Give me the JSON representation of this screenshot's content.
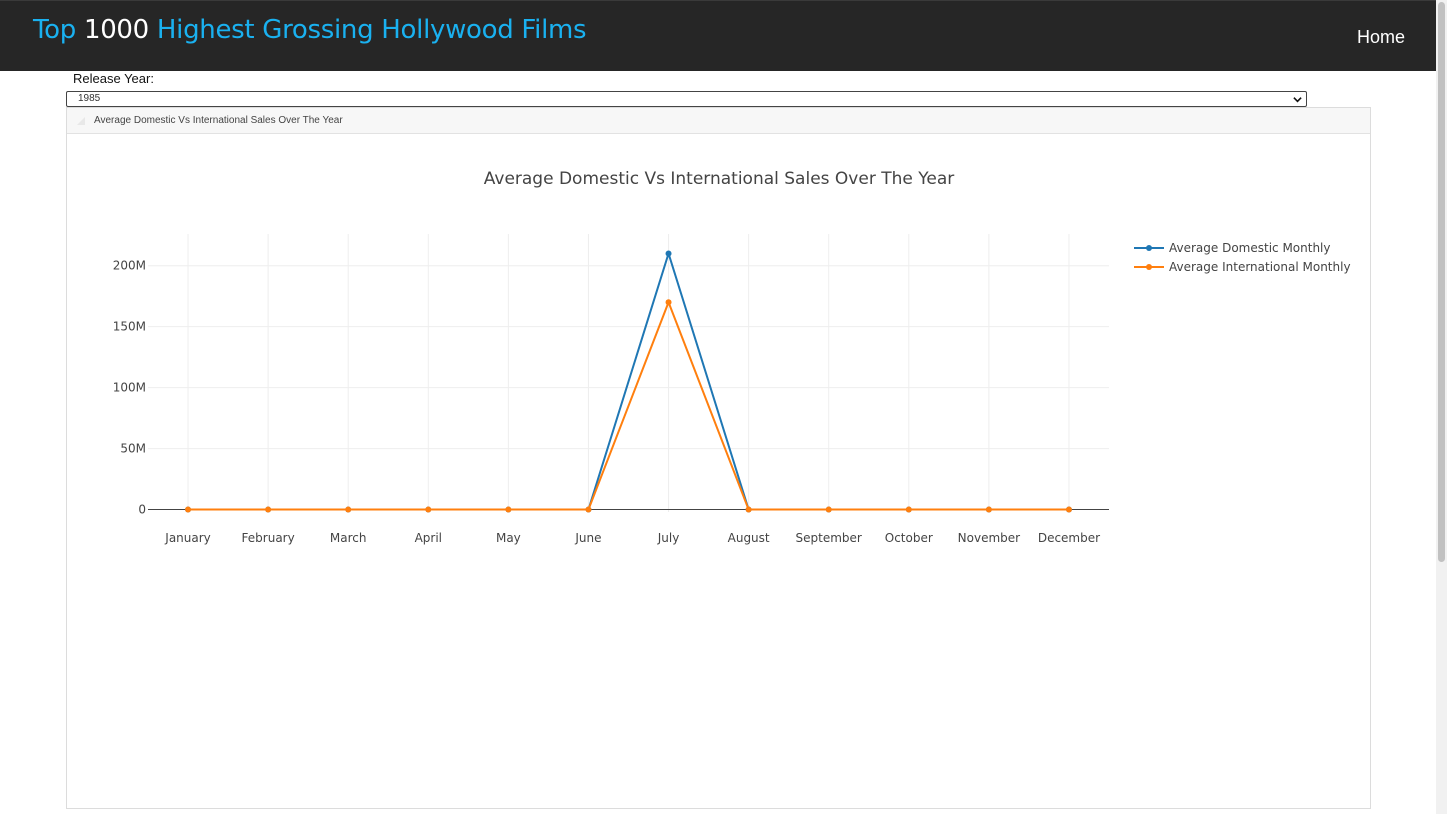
{
  "navbar": {
    "brand_part1": "Top",
    "brand_part2": "1000",
    "brand_part3": "Highest Grossing Hollywood Films",
    "home_label": "Home"
  },
  "filter": {
    "label": "Release Year:",
    "selected_year": "1985"
  },
  "card": {
    "header_title": "Average Domestic Vs International Sales Over The Year"
  },
  "chart_data": {
    "type": "line",
    "title": "Average Domestic Vs International Sales Over The Year",
    "xlabel": "",
    "ylabel": "",
    "categories": [
      "January",
      "February",
      "March",
      "April",
      "May",
      "June",
      "July",
      "August",
      "September",
      "October",
      "November",
      "December"
    ],
    "series": [
      {
        "name": "Average Domestic Monthly",
        "color": "#1f77b4",
        "values": [
          0,
          0,
          0,
          0,
          0,
          0,
          210000000,
          0,
          0,
          0,
          0,
          0
        ]
      },
      {
        "name": "Average International Monthly",
        "color": "#ff7f0e",
        "values": [
          0,
          0,
          0,
          0,
          0,
          0,
          170000000,
          0,
          0,
          0,
          0,
          0
        ]
      }
    ],
    "yticks": [
      0,
      50000000,
      100000000,
      150000000,
      200000000
    ],
    "ytick_labels": [
      "0",
      "50M",
      "100M",
      "150M",
      "200M"
    ],
    "ylim": [
      -2000000,
      226000000
    ],
    "grid": true,
    "legend_position": "top-right"
  }
}
